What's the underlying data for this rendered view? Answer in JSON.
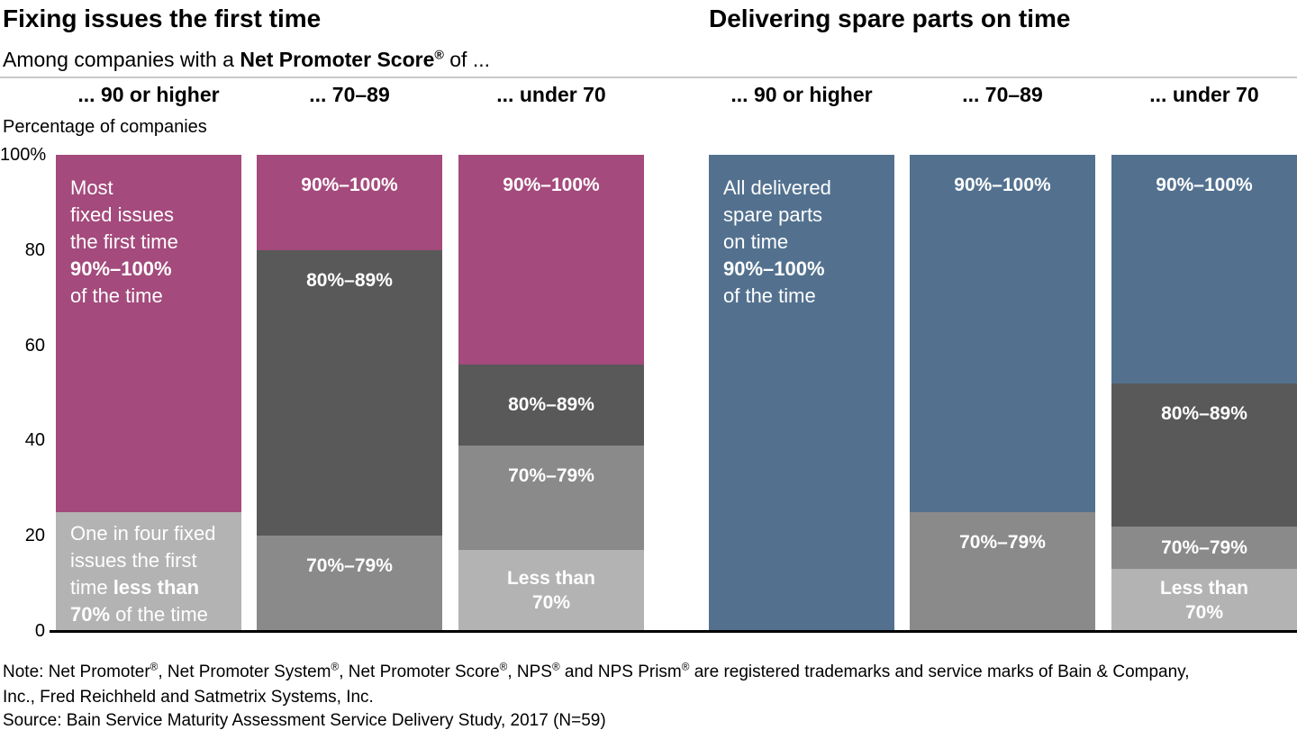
{
  "page": {
    "left_title": "Fixing issues the first time",
    "right_title": "Delivering spare parts on time",
    "subtitle_runs": [
      {
        "t": "Among companies with a "
      },
      {
        "t": "Net Promoter Score",
        "b": true
      },
      {
        "t": "®",
        "b": true,
        "sup": true
      },
      {
        "t": " of ..."
      }
    ],
    "ylabel": "Percentage of companies",
    "note_line1_runs": [
      {
        "t": "Note: Net Promoter"
      },
      {
        "t": "®",
        "sup": true
      },
      {
        "t": ", Net Promoter System"
      },
      {
        "t": "®",
        "sup": true
      },
      {
        "t": ", Net Promoter Score"
      },
      {
        "t": "®",
        "sup": true
      },
      {
        "t": ", NPS"
      },
      {
        "t": "®",
        "sup": true
      },
      {
        "t": " and NPS Prism"
      },
      {
        "t": "®",
        "sup": true
      },
      {
        "t": " are registered trademarks and service marks of Bain & Company,"
      }
    ],
    "note_line2": "Inc., Fred Reichheld and Satmetrix Systems, Inc.",
    "source": "Source: Bain Service Maturity Assessment Service Delivery Study, 2017 (N=59)"
  },
  "colors": {
    "magenta": "#a44a7c",
    "blue": "#53718f",
    "gray_dark": "#595959",
    "gray_medium": "#8a8a8a",
    "gray_light": "#b3b3b3",
    "axis": "#000000",
    "rule": "#c9c9c9",
    "label_text": "#ffffff"
  },
  "chart_data": {
    "type": "bar",
    "stacked": true,
    "title_left": "Fixing issues the first time",
    "title_right": "Delivering spare parts on time",
    "ylabel": "Percentage of companies",
    "unit": "percent of companies",
    "ylim": [
      0,
      100
    ],
    "grid": false,
    "legend": "labels inside segments",
    "yticks": [
      {
        "label": "100%",
        "value": 100
      },
      {
        "label": "80",
        "value": 80
      },
      {
        "label": "60",
        "value": 60
      },
      {
        "label": "40",
        "value": 40
      },
      {
        "label": "20",
        "value": 20
      },
      {
        "label": "0",
        "value": 0
      }
    ],
    "panels": [
      {
        "title": "Fixing issues the first time",
        "bars": [
          {
            "category": "... 90 or higher",
            "segments": [
              {
                "value": 75,
                "color": "magenta",
                "label_align": "left",
                "label_lines": [
                  [
                    {
                      "t": "Most"
                    }
                  ],
                  [
                    {
                      "t": "fixed issues"
                    }
                  ],
                  [
                    {
                      "t": "the first time"
                    }
                  ],
                  [
                    {
                      "t": "90%–100%",
                      "b": true
                    }
                  ],
                  [
                    {
                      "t": "of the time"
                    }
                  ]
                ]
              },
              {
                "value": 25,
                "color": "gray_light",
                "label_align": "left",
                "label_lines": [
                  [
                    {
                      "t": "One in four fixed"
                    }
                  ],
                  [
                    {
                      "t": "issues the first"
                    }
                  ],
                  [
                    {
                      "t": "time "
                    },
                    {
                      "t": "less than",
                      "b": true
                    }
                  ],
                  [
                    {
                      "t": "70%",
                      "b": true
                    },
                    {
                      "t": " of the time"
                    }
                  ]
                ]
              }
            ]
          },
          {
            "category": "... 70–89",
            "segments": [
              {
                "value": 20,
                "color": "magenta",
                "label_lines": [
                  [
                    {
                      "t": "90%–100%",
                      "b": true
                    }
                  ]
                ]
              },
              {
                "value": 60,
                "color": "gray_dark",
                "label_lines": [
                  [
                    {
                      "t": "80%–89%",
                      "b": true
                    }
                  ]
                ]
              },
              {
                "value": 20,
                "color": "gray_medium",
                "label_lines": [
                  [
                    {
                      "t": "70%–79%",
                      "b": true
                    }
                  ]
                ]
              }
            ]
          },
          {
            "category": "... under 70",
            "segments": [
              {
                "value": 44,
                "color": "magenta",
                "label_lines": [
                  [
                    {
                      "t": "90%–100%",
                      "b": true
                    }
                  ]
                ]
              },
              {
                "value": 17,
                "color": "gray_dark",
                "label_lines": [
                  [
                    {
                      "t": "80%–89%",
                      "b": true
                    }
                  ]
                ]
              },
              {
                "value": 22,
                "color": "gray_medium",
                "label_lines": [
                  [
                    {
                      "t": "70%–79%",
                      "b": true
                    }
                  ]
                ]
              },
              {
                "value": 17,
                "color": "gray_light",
                "label_lines": [
                  [
                    {
                      "t": "Less than",
                      "b": true
                    }
                  ],
                  [
                    {
                      "t": "70%",
                      "b": true
                    }
                  ]
                ]
              }
            ]
          }
        ]
      },
      {
        "title": "Delivering spare parts on time",
        "bars": [
          {
            "category": "... 90 or higher",
            "segments": [
              {
                "value": 100,
                "color": "blue",
                "label_align": "left",
                "label_lines": [
                  [
                    {
                      "t": "All delivered"
                    }
                  ],
                  [
                    {
                      "t": "spare parts"
                    }
                  ],
                  [
                    {
                      "t": "on time"
                    }
                  ],
                  [
                    {
                      "t": "90%–100%",
                      "b": true
                    }
                  ],
                  [
                    {
                      "t": "of the time"
                    }
                  ]
                ]
              }
            ]
          },
          {
            "category": "... 70–89",
            "segments": [
              {
                "value": 75,
                "color": "blue",
                "label_lines": [
                  [
                    {
                      "t": "90%–100%",
                      "b": true
                    }
                  ]
                ]
              },
              {
                "value": 25,
                "color": "gray_medium",
                "label_lines": [
                  [
                    {
                      "t": "70%–79%",
                      "b": true
                    }
                  ]
                ]
              }
            ]
          },
          {
            "category": "... under 70",
            "segments": [
              {
                "value": 48,
                "color": "blue",
                "label_lines": [
                  [
                    {
                      "t": "90%–100%",
                      "b": true
                    }
                  ]
                ]
              },
              {
                "value": 30,
                "color": "gray_dark",
                "label_lines": [
                  [
                    {
                      "t": "80%–89%",
                      "b": true
                    }
                  ]
                ]
              },
              {
                "value": 9,
                "color": "gray_medium",
                "label_lines": [
                  [
                    {
                      "t": "70%–79%",
                      "b": true
                    }
                  ]
                ]
              },
              {
                "value": 13,
                "color": "gray_light",
                "label_lines": [
                  [
                    {
                      "t": "Less than",
                      "b": true
                    }
                  ],
                  [
                    {
                      "t": "70%",
                      "b": true
                    }
                  ]
                ]
              }
            ]
          }
        ]
      }
    ]
  }
}
